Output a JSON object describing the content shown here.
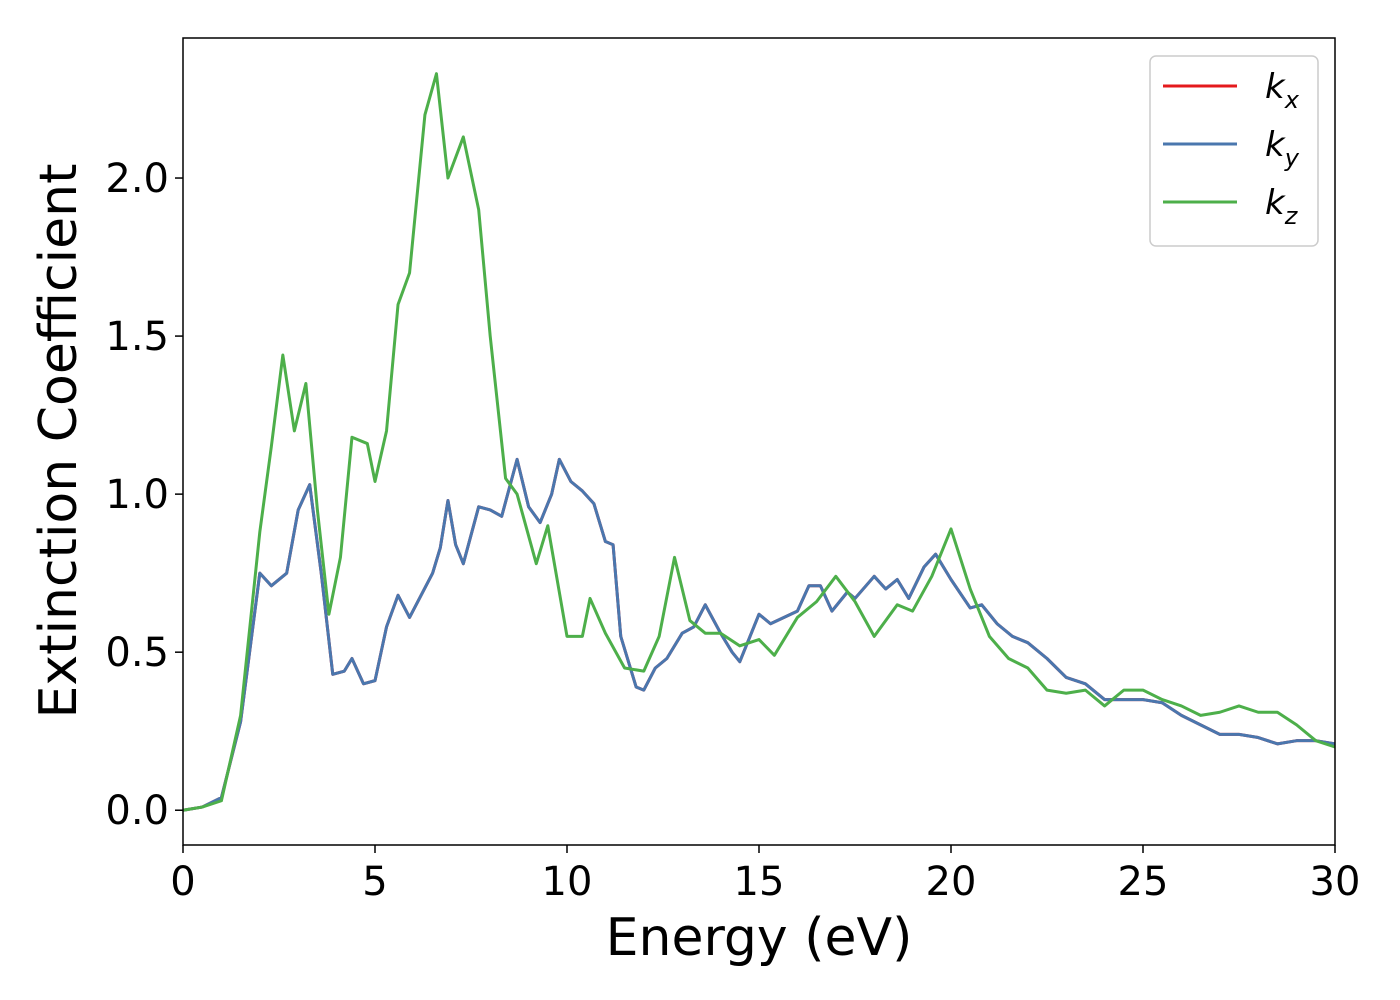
{
  "chart_data": {
    "type": "line",
    "xlabel": "Energy (eV)",
    "ylabel": "Extinction Coefficient",
    "xlim": [
      0,
      30
    ],
    "ylim": [
      -0.11,
      2.443
    ],
    "xticks": [
      0,
      5,
      10,
      15,
      20,
      25,
      30
    ],
    "yticks": [
      {
        "value": 0,
        "label": "0.0"
      },
      {
        "value": 0.5,
        "label": "0.5"
      },
      {
        "value": 1,
        "label": "1.0"
      },
      {
        "value": 1.5,
        "label": "1.5"
      },
      {
        "value": 2,
        "label": "2.0"
      }
    ],
    "legend": "upper right",
    "series": [
      {
        "name": "k_x",
        "color": "#e41a1c",
        "x": [
          0,
          0.5,
          1,
          1.5,
          2,
          2.3,
          2.7,
          3,
          3.3,
          3.6,
          3.9,
          4.2,
          4.4,
          4.7,
          5,
          5.3,
          5.6,
          5.9,
          6.2,
          6.5,
          6.7,
          6.9,
          7.1,
          7.3,
          7.7,
          8,
          8.3,
          8.7,
          9,
          9.3,
          9.6,
          9.8,
          10.1,
          10.4,
          10.7,
          11,
          11.2,
          11.4,
          11.8,
          12,
          12.3,
          12.6,
          13,
          13.3,
          13.6,
          14,
          14.3,
          14.5,
          15,
          15.3,
          16,
          16.3,
          16.6,
          16.9,
          17.3,
          17.5,
          18,
          18.3,
          18.6,
          18.9,
          19.3,
          19.6,
          20,
          20.5,
          20.8,
          21.2,
          21.6,
          22,
          22.5,
          23,
          23.5,
          24,
          24.5,
          25,
          25.5,
          26,
          26.5,
          27,
          27.5,
          28,
          28.5,
          29,
          29.5,
          30
        ],
        "values": [
          0,
          0.01,
          0.04,
          0.28,
          0.75,
          0.71,
          0.75,
          0.95,
          1.03,
          0.75,
          0.43,
          0.44,
          0.48,
          0.4,
          0.41,
          0.58,
          0.68,
          0.61,
          0.68,
          0.75,
          0.83,
          0.98,
          0.84,
          0.78,
          0.96,
          0.95,
          0.93,
          1.11,
          0.96,
          0.91,
          1.0,
          1.11,
          1.04,
          1.01,
          0.97,
          0.85,
          0.84,
          0.55,
          0.39,
          0.38,
          0.45,
          0.48,
          0.56,
          0.58,
          0.65,
          0.56,
          0.5,
          0.47,
          0.62,
          0.59,
          0.63,
          0.71,
          0.71,
          0.63,
          0.69,
          0.67,
          0.74,
          0.7,
          0.73,
          0.67,
          0.77,
          0.81,
          0.73,
          0.64,
          0.65,
          0.59,
          0.55,
          0.53,
          0.48,
          0.42,
          0.4,
          0.35,
          0.35,
          0.35,
          0.34,
          0.3,
          0.27,
          0.24,
          0.24,
          0.23,
          0.21,
          0.22,
          0.22,
          0.21
        ]
      },
      {
        "name": "k_y",
        "color": "#4a77ae",
        "x": [
          0,
          0.5,
          1,
          1.5,
          2,
          2.3,
          2.7,
          3,
          3.3,
          3.6,
          3.9,
          4.2,
          4.4,
          4.7,
          5,
          5.3,
          5.6,
          5.9,
          6.2,
          6.5,
          6.7,
          6.9,
          7.1,
          7.3,
          7.7,
          8,
          8.3,
          8.7,
          9,
          9.3,
          9.6,
          9.8,
          10.1,
          10.4,
          10.7,
          11,
          11.2,
          11.4,
          11.8,
          12,
          12.3,
          12.6,
          13,
          13.3,
          13.6,
          14,
          14.3,
          14.5,
          15,
          15.3,
          16,
          16.3,
          16.6,
          16.9,
          17.3,
          17.5,
          18,
          18.3,
          18.6,
          18.9,
          19.3,
          19.6,
          20,
          20.5,
          20.8,
          21.2,
          21.6,
          22,
          22.5,
          23,
          23.5,
          24,
          24.5,
          25,
          25.5,
          26,
          26.5,
          27,
          27.5,
          28,
          28.5,
          29,
          29.5,
          30
        ],
        "values": [
          0,
          0.01,
          0.04,
          0.28,
          0.75,
          0.71,
          0.75,
          0.95,
          1.03,
          0.75,
          0.43,
          0.44,
          0.48,
          0.4,
          0.41,
          0.58,
          0.68,
          0.61,
          0.68,
          0.75,
          0.83,
          0.98,
          0.84,
          0.78,
          0.96,
          0.95,
          0.93,
          1.11,
          0.96,
          0.91,
          1.0,
          1.11,
          1.04,
          1.01,
          0.97,
          0.85,
          0.84,
          0.55,
          0.39,
          0.38,
          0.45,
          0.48,
          0.56,
          0.58,
          0.65,
          0.56,
          0.5,
          0.47,
          0.62,
          0.59,
          0.63,
          0.71,
          0.71,
          0.63,
          0.69,
          0.67,
          0.74,
          0.7,
          0.73,
          0.67,
          0.77,
          0.81,
          0.73,
          0.64,
          0.65,
          0.59,
          0.55,
          0.53,
          0.48,
          0.42,
          0.4,
          0.35,
          0.35,
          0.35,
          0.34,
          0.3,
          0.27,
          0.24,
          0.24,
          0.23,
          0.21,
          0.22,
          0.22,
          0.21
        ]
      },
      {
        "name": "k_z",
        "color": "#4daf4a",
        "x": [
          0,
          0.5,
          1,
          1.5,
          2,
          2.3,
          2.6,
          2.9,
          3.2,
          3.5,
          3.8,
          4.1,
          4.4,
          4.8,
          5,
          5.3,
          5.6,
          5.9,
          6.3,
          6.6,
          6.9,
          7.3,
          7.7,
          8,
          8.4,
          8.7,
          9.2,
          9.5,
          10,
          10.4,
          10.6,
          11,
          11.5,
          12,
          12.4,
          12.8,
          13.2,
          13.6,
          14,
          14.5,
          15,
          15.4,
          16,
          16.5,
          17,
          17.5,
          18,
          18.6,
          19,
          19.5,
          20,
          20.5,
          21,
          21.5,
          22,
          22.5,
          23,
          23.5,
          24,
          24.5,
          25,
          25.5,
          26,
          26.5,
          27,
          27.5,
          28,
          28.5,
          29,
          29.5,
          30
        ],
        "values": [
          0,
          0.01,
          0.03,
          0.3,
          0.88,
          1.15,
          1.44,
          1.2,
          1.35,
          0.95,
          0.62,
          0.8,
          1.18,
          1.16,
          1.04,
          1.2,
          1.6,
          1.7,
          2.2,
          2.33,
          2.0,
          2.13,
          1.9,
          1.5,
          1.05,
          1.0,
          0.78,
          0.9,
          0.55,
          0.55,
          0.67,
          0.56,
          0.45,
          0.44,
          0.55,
          0.8,
          0.6,
          0.56,
          0.56,
          0.52,
          0.54,
          0.49,
          0.61,
          0.66,
          0.74,
          0.66,
          0.55,
          0.65,
          0.63,
          0.74,
          0.89,
          0.7,
          0.55,
          0.48,
          0.45,
          0.38,
          0.37,
          0.38,
          0.33,
          0.38,
          0.38,
          0.35,
          0.33,
          0.3,
          0.31,
          0.33,
          0.31,
          0.31,
          0.27,
          0.22,
          0.2
        ]
      }
    ]
  }
}
